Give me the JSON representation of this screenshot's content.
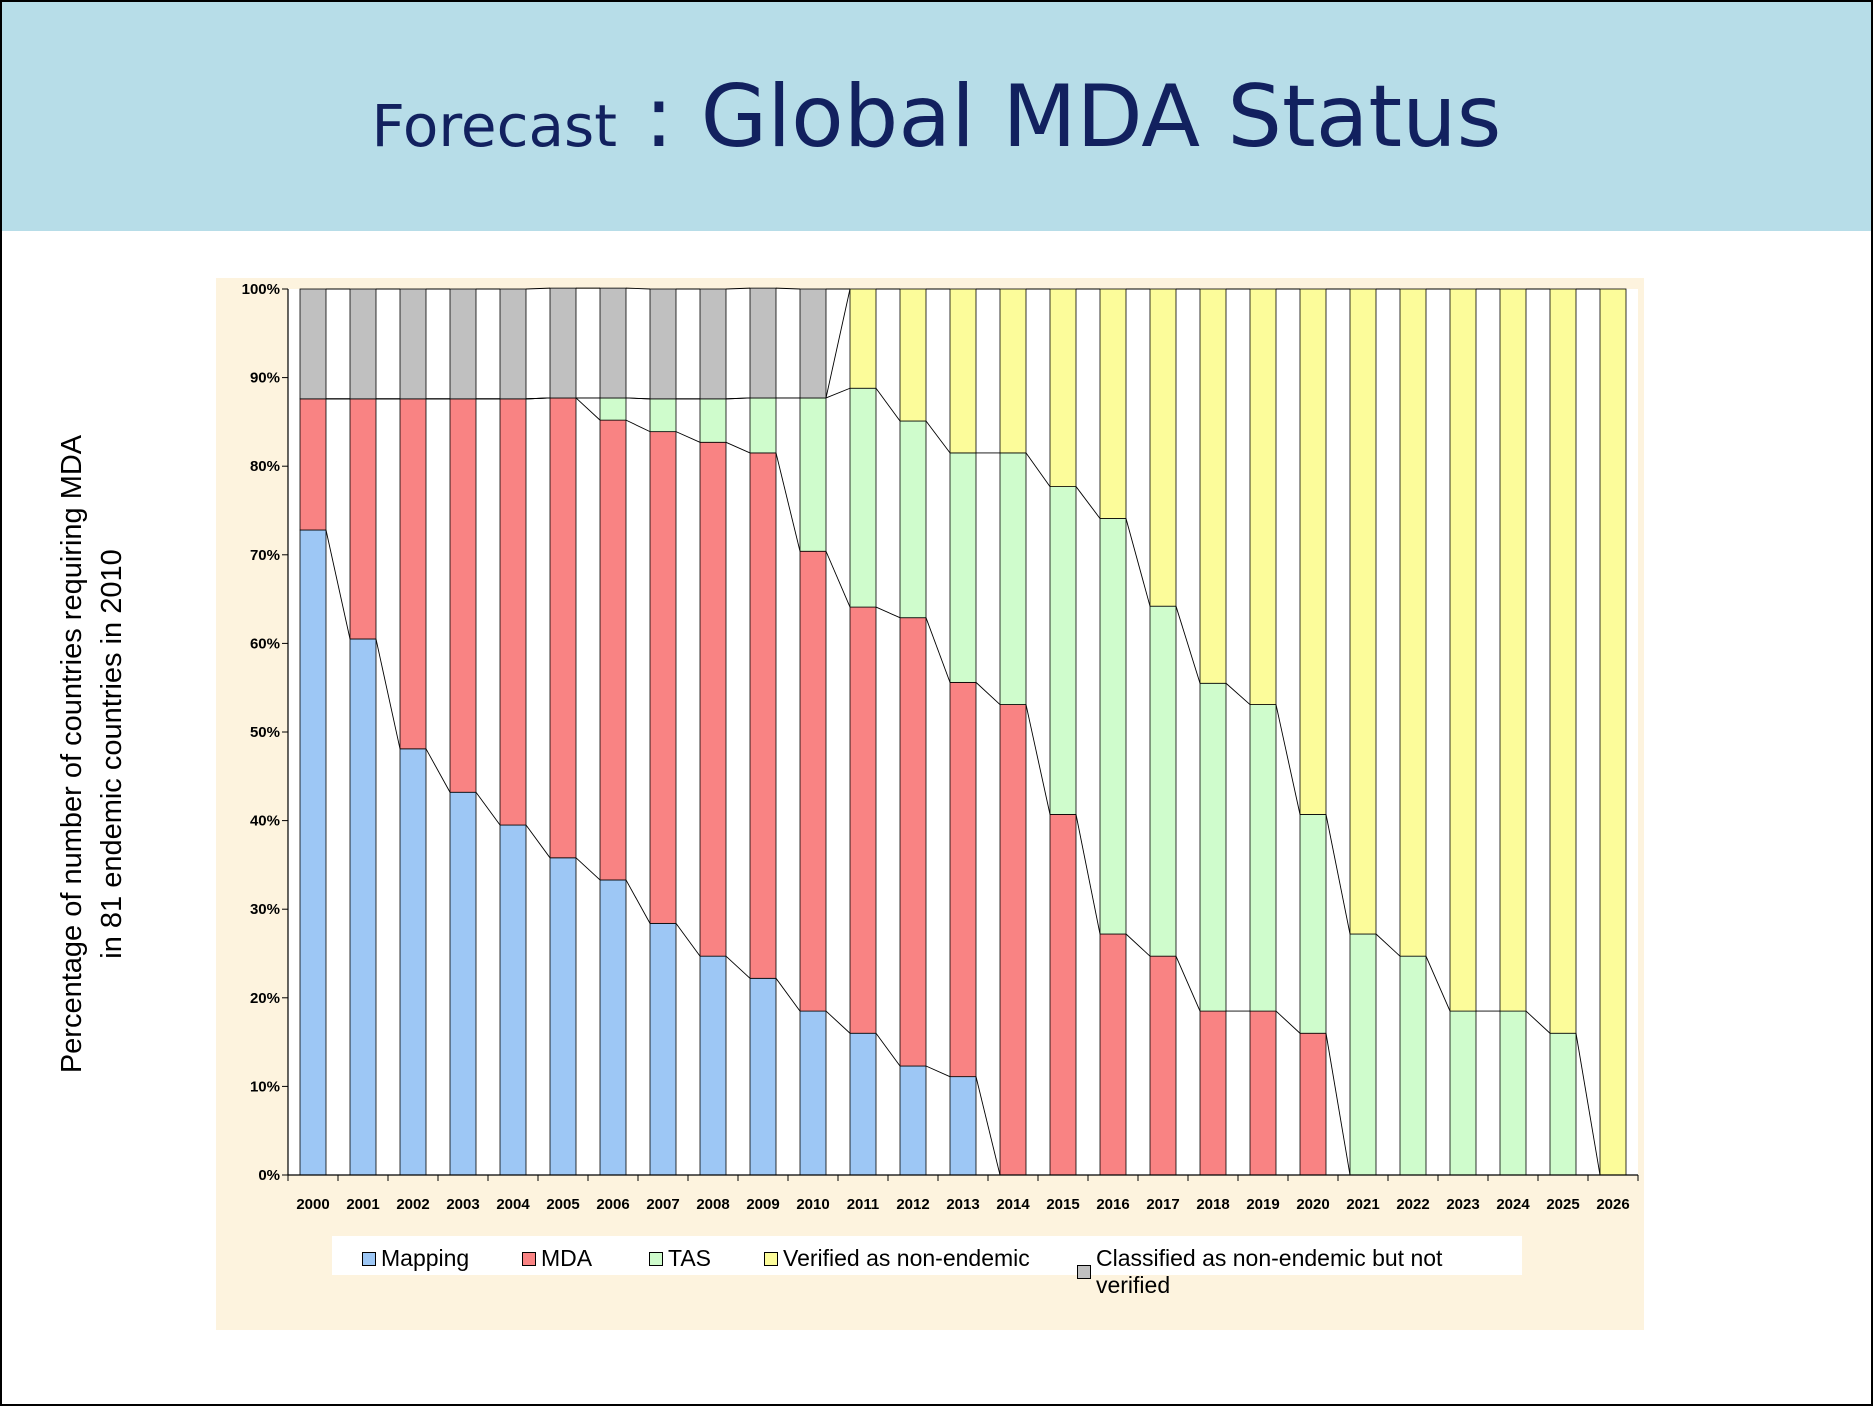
{
  "header": {
    "title_prefix": "Forecast",
    "title_sep": " : ",
    "title_main": "Global MDA Status"
  },
  "colors": {
    "banner": "#b7dde8",
    "title": "#12215f",
    "plot_background": "#fdf3de",
    "mapping": "#9dc7f5",
    "mda": "#f98383",
    "tas": "#cffccc",
    "verified": "#fcfc9a",
    "classified": "#c0c0c0",
    "gap": "#ffffff"
  },
  "chart_data": {
    "type": "bar",
    "stacked": true,
    "ylabel": "Percentage of number of countries requiring MDA in 81 endemic countries in 2010",
    "ylabel_lines": [
      "Percentage of number of countries requiring MDA",
      "in 81 endemic countries in 2010"
    ],
    "ylim": [
      0,
      100
    ],
    "yticks": [
      "0%",
      "10%",
      "20%",
      "30%",
      "40%",
      "50%",
      "60%",
      "70%",
      "80%",
      "90%",
      "100%"
    ],
    "legend_position": "bottom",
    "categories": [
      "2000",
      "2001",
      "2002",
      "2003",
      "2004",
      "2005",
      "2006",
      "2007",
      "2008",
      "2009",
      "2010",
      "2011",
      "2012",
      "2013",
      "2014",
      "2015",
      "2016",
      "2017",
      "2018",
      "2019",
      "2020",
      "2021",
      "2022",
      "2023",
      "2024",
      "2025",
      "2026"
    ],
    "series": [
      {
        "name": "Mapping",
        "color_key": "mapping",
        "values": [
          72.8,
          60.5,
          48.1,
          43.2,
          39.5,
          35.8,
          33.3,
          28.4,
          24.7,
          22.2,
          18.5,
          16.0,
          12.3,
          11.1,
          0,
          0,
          0,
          0,
          0,
          0,
          0,
          0,
          0,
          0,
          0,
          0,
          0
        ]
      },
      {
        "name": "MDA",
        "color_key": "mda",
        "values": [
          14.8,
          27.1,
          39.5,
          44.4,
          48.1,
          51.9,
          51.9,
          55.5,
          58.0,
          59.3,
          51.9,
          48.1,
          50.6,
          44.5,
          53.1,
          40.7,
          27.2,
          24.7,
          18.5,
          18.5,
          16.0,
          0,
          0,
          0,
          0,
          0,
          0
        ]
      },
      {
        "name": "TAS",
        "color_key": "tas",
        "values": [
          0,
          0,
          0,
          0,
          0,
          0,
          2.5,
          3.7,
          4.9,
          6.2,
          17.3,
          24.7,
          22.2,
          25.9,
          28.4,
          37.0,
          46.9,
          39.5,
          37.0,
          34.6,
          24.7,
          27.2,
          24.7,
          18.5,
          18.5,
          16.0,
          0
        ]
      },
      {
        "name": "Verified as non-endemic",
        "color_key": "verified",
        "values": [
          0,
          0,
          0,
          0,
          0,
          0,
          0,
          0,
          0,
          0,
          0,
          11.2,
          14.9,
          18.5,
          18.5,
          22.3,
          25.9,
          35.8,
          44.5,
          46.9,
          59.3,
          72.8,
          75.3,
          81.5,
          81.5,
          84.0,
          100
        ]
      },
      {
        "name": "Classified as non-endemic but not verified",
        "color_key": "classified",
        "values": [
          12.4,
          12.4,
          12.4,
          12.4,
          12.4,
          12.4,
          12.4,
          12.4,
          12.4,
          12.4,
          12.3,
          0,
          0,
          0,
          0,
          0,
          0,
          0,
          0,
          0,
          0,
          0,
          0,
          0,
          0,
          0,
          0
        ]
      }
    ]
  }
}
